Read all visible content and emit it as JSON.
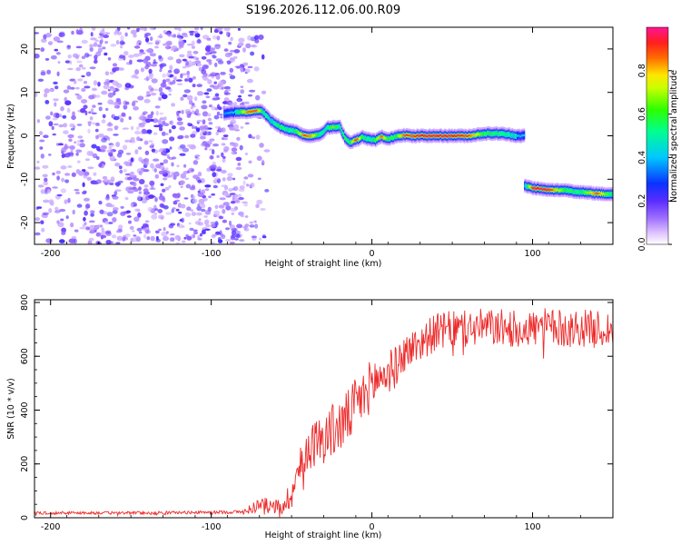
{
  "figure_title": "S196.2026.112.06.00.R09",
  "colors": {
    "snr_line": "#ee2a2a",
    "noise_fill": "#8a2be2",
    "axis": "#000000"
  },
  "chart_data": [
    {
      "type": "heatmap",
      "title": "S196.2026.112.06.00.R09",
      "xlabel": "Height of straight line (km)",
      "ylabel": "Frequency (Hz)",
      "xlim": [
        -210,
        150
      ],
      "ylim": [
        -25,
        25
      ],
      "xticks": [
        -200,
        -100,
        0,
        100
      ],
      "yticks": [
        -20,
        -10,
        0,
        10,
        20
      ],
      "xtick_labels": [
        "-200",
        "-100",
        "0",
        "100"
      ],
      "ytick_labels": [
        "-20",
        "-10",
        "0",
        "10",
        "20"
      ],
      "colorbar": {
        "label": "Normalized spectral amplitude",
        "range": [
          0.0,
          1.0
        ],
        "ticks": [
          0.0,
          0.2,
          0.4,
          0.6,
          0.8
        ],
        "tick_labels": [
          "0.0",
          "0.2",
          "0.4",
          "0.6",
          "0.8"
        ],
        "colormap": "rainbow (white-violet-blue-cyan-green-yellow-red-magenta)"
      },
      "noise_region_x": [
        -210,
        -80
      ],
      "ridge": {
        "x": [
          -92,
          -85,
          -78,
          -72,
          -68,
          -63,
          -57,
          -52,
          -47,
          -42,
          -37,
          -32,
          -28,
          -24,
          -20,
          -17,
          -14,
          -10,
          -6,
          -2,
          2,
          6,
          10,
          15,
          20,
          25,
          30,
          40,
          50,
          60,
          70,
          80,
          90,
          95
        ],
        "freq": [
          5,
          5.5,
          5.5,
          5.8,
          5.6,
          3.5,
          2,
          1.4,
          1,
          0,
          0,
          0.4,
          1.8,
          2,
          2,
          -0.3,
          -1.5,
          -1,
          -0.3,
          -0.8,
          -1,
          -0.2,
          -0.8,
          -0.1,
          0.2,
          -0.1,
          0,
          0,
          0,
          0,
          0.5,
          0.5,
          0,
          0
        ],
        "amplitude": [
          0.35,
          0.45,
          0.85,
          0.9,
          0.55,
          0.45,
          0.6,
          0.5,
          0.6,
          0.9,
          0.8,
          0.5,
          0.5,
          0.7,
          0.5,
          0.6,
          0.55,
          0.95,
          0.6,
          0.5,
          0.6,
          0.9,
          0.6,
          0.6,
          0.9,
          0.9,
          0.95,
          0.95,
          0.95,
          0.9,
          0.6,
          0.55,
          0.45,
          0.4
        ]
      },
      "ridge2": {
        "x": [
          95,
          100,
          110,
          120,
          130,
          140,
          150
        ],
        "freq": [
          -11.5,
          -12,
          -12.5,
          -12.5,
          -13,
          -13.3,
          -13.5
        ],
        "amplitude": [
          0.4,
          0.95,
          0.95,
          0.6,
          0.55,
          0.9,
          0.5
        ]
      }
    },
    {
      "type": "line",
      "xlabel": "Height of straight line (km)",
      "ylabel": "SNR (10 * v/v)",
      "xlim": [
        -210,
        150
      ],
      "ylim": [
        0,
        810
      ],
      "xticks": [
        -200,
        -100,
        0,
        100
      ],
      "yticks": [
        0,
        200,
        400,
        600,
        800
      ],
      "xtick_labels": [
        "-200",
        "-100",
        "0",
        "100"
      ],
      "ytick_labels": [
        "0",
        "200",
        "400",
        "600",
        "800"
      ],
      "series": [
        {
          "name": "SNR",
          "x": [
            -210,
            -150,
            -100,
            -80,
            -75,
            -70,
            -65,
            -60,
            -55,
            -50,
            -45,
            -40,
            -35,
            -30,
            -25,
            -20,
            -15,
            -10,
            -5,
            0,
            5,
            10,
            15,
            20,
            25,
            30,
            35,
            40,
            50,
            60,
            70,
            80,
            90,
            100,
            110,
            120,
            130,
            140,
            150
          ],
          "y": [
            18,
            18,
            20,
            22,
            35,
            50,
            45,
            40,
            50,
            90,
            180,
            260,
            280,
            300,
            320,
            340,
            370,
            420,
            450,
            500,
            520,
            540,
            560,
            610,
            630,
            650,
            670,
            690,
            700,
            700,
            710,
            705,
            700,
            705,
            710,
            700,
            705,
            700,
            700
          ],
          "amplitude_of_fluctuation": [
            8,
            8,
            8,
            10,
            30,
            40,
            40,
            40,
            60,
            80,
            110,
            120,
            130,
            140,
            150,
            150,
            150,
            150,
            140,
            140,
            130,
            120,
            110,
            100,
            100,
            100,
            100,
            100,
            100,
            100,
            100,
            100,
            100,
            100,
            100,
            100,
            100,
            100,
            100
          ]
        }
      ]
    }
  ]
}
